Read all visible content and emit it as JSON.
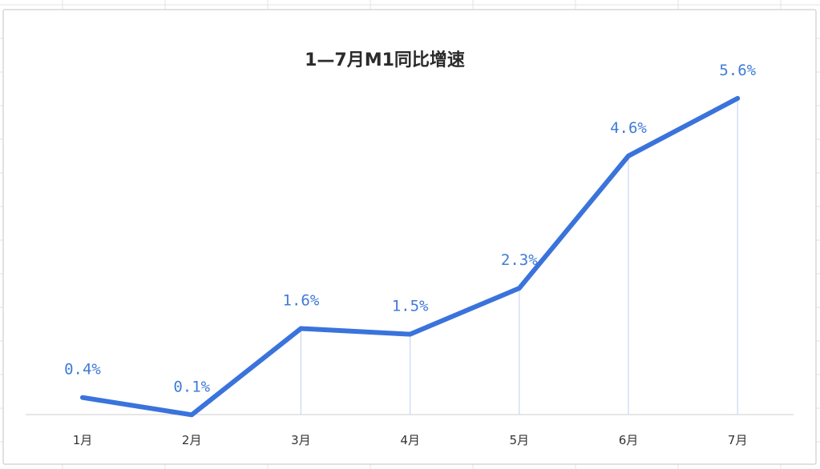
{
  "chart_data": {
    "type": "line",
    "title": "1—7月M1同比增速",
    "categories": [
      "1月",
      "2月",
      "3月",
      "4月",
      "5月",
      "6月",
      "7月"
    ],
    "series": [
      {
        "values": [
          0.4,
          0.1,
          1.6,
          1.5,
          2.3,
          4.6,
          5.6
        ],
        "labels": [
          "0.4%",
          "0.1%",
          "1.6%",
          "1.5%",
          "2.3%",
          "4.6%",
          "5.6%"
        ]
      }
    ],
    "ylim": [
      0,
      6
    ],
    "grid": false,
    "legend": "none",
    "colors": {
      "line": "#3a73db",
      "label": "#3f7bd6",
      "drop_line": "#c8d8f3",
      "sheet_grid": "#e3e3e3",
      "title": "#2b2b2b"
    }
  }
}
